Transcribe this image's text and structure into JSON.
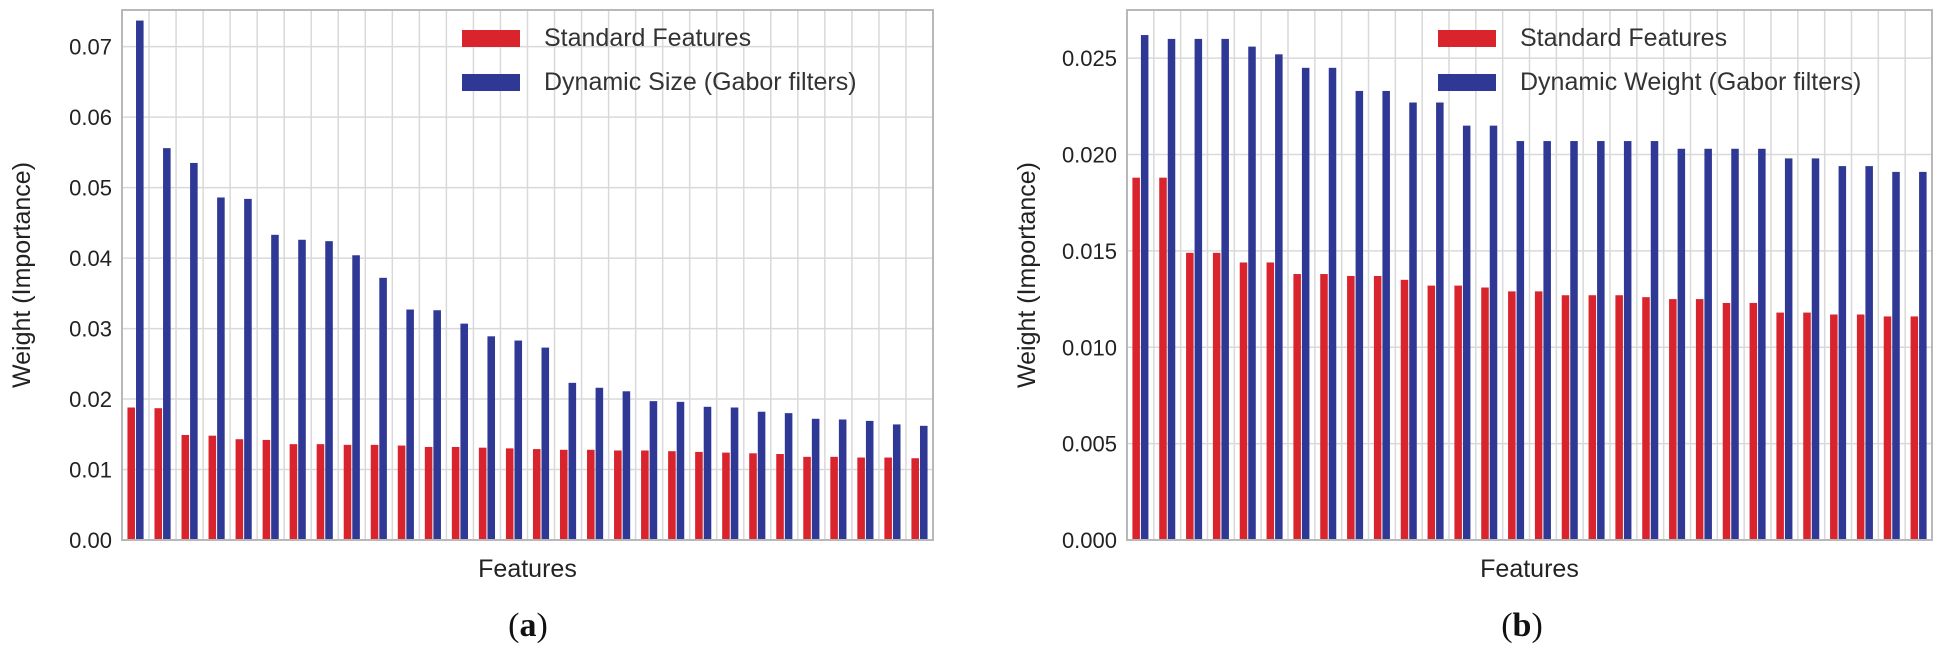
{
  "colors": {
    "standard": "#d9232d",
    "gabor": "#2f3894",
    "grid": "#d9d9d9",
    "frame": "#b8b8b8"
  },
  "panels": [
    {
      "label_open": "(",
      "label_letter": "a",
      "label_close": ")"
    },
    {
      "label_open": "(",
      "label_letter": "b",
      "label_close": ")"
    }
  ],
  "chart_data": [
    {
      "type": "bar",
      "xlabel": "Features",
      "ylabel": "Weight (Importance)",
      "ylim": [
        0,
        0.0752
      ],
      "yticks": [
        0.0,
        0.01,
        0.02,
        0.03,
        0.04,
        0.05,
        0.06,
        0.07
      ],
      "ytick_labels": [
        "0.00",
        "0.01",
        "0.02",
        "0.03",
        "0.04",
        "0.05",
        "0.06",
        "0.07"
      ],
      "grid": true,
      "legend_position": "top-right",
      "series": [
        {
          "name": "Standard Features",
          "color_key": "standard",
          "values": [
            0.0188,
            0.0187,
            0.0149,
            0.0148,
            0.0143,
            0.0142,
            0.0136,
            0.0136,
            0.0135,
            0.0135,
            0.0134,
            0.0132,
            0.0132,
            0.0131,
            0.013,
            0.0129,
            0.0128,
            0.0128,
            0.0127,
            0.0127,
            0.0126,
            0.0125,
            0.0124,
            0.0123,
            0.0122,
            0.0118,
            0.0118,
            0.0117,
            0.0117,
            0.0116
          ]
        },
        {
          "name": "Dynamic Size (Gabor filters)",
          "color_key": "gabor",
          "values": [
            0.0737,
            0.0556,
            0.0535,
            0.0486,
            0.0484,
            0.0433,
            0.0426,
            0.0424,
            0.0404,
            0.0372,
            0.0327,
            0.0326,
            0.0307,
            0.0289,
            0.0283,
            0.0273,
            0.0223,
            0.0216,
            0.0211,
            0.0197,
            0.0196,
            0.0189,
            0.0188,
            0.0182,
            0.018,
            0.0172,
            0.0171,
            0.0169,
            0.0164,
            0.0162
          ]
        }
      ]
    },
    {
      "type": "bar",
      "xlabel": "Features",
      "ylabel": "Weight (Importance)",
      "ylim": [
        0,
        0.0275
      ],
      "yticks": [
        0.0,
        0.005,
        0.01,
        0.015,
        0.02,
        0.025
      ],
      "ytick_labels": [
        "0.000",
        "0.005",
        "0.010",
        "0.015",
        "0.020",
        "0.025"
      ],
      "grid": true,
      "legend_position": "top-right",
      "series": [
        {
          "name": "Standard Features",
          "color_key": "standard",
          "values": [
            0.0188,
            0.0188,
            0.0149,
            0.0149,
            0.0144,
            0.0144,
            0.0138,
            0.0138,
            0.0137,
            0.0137,
            0.0135,
            0.0132,
            0.0132,
            0.0131,
            0.0129,
            0.0129,
            0.0127,
            0.0127,
            0.0127,
            0.0126,
            0.0125,
            0.0125,
            0.0123,
            0.0123,
            0.0118,
            0.0118,
            0.0117,
            0.0117,
            0.0116,
            0.0116
          ]
        },
        {
          "name": "Dynamic Weight (Gabor filters)",
          "color_key": "gabor",
          "values": [
            0.0262,
            0.026,
            0.026,
            0.026,
            0.0256,
            0.0252,
            0.0245,
            0.0245,
            0.0233,
            0.0233,
            0.0227,
            0.0227,
            0.0215,
            0.0215,
            0.0207,
            0.0207,
            0.0207,
            0.0207,
            0.0207,
            0.0207,
            0.0203,
            0.0203,
            0.0203,
            0.0203,
            0.0198,
            0.0198,
            0.0194,
            0.0194,
            0.0191,
            0.0191
          ]
        }
      ]
    }
  ]
}
